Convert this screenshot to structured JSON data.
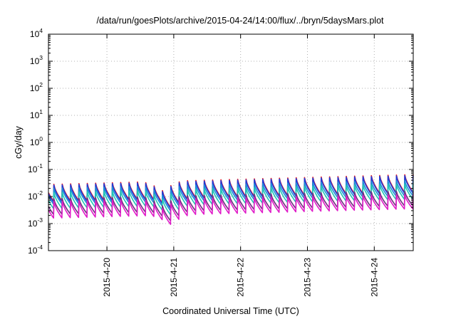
{
  "chart_data": {
    "type": "line",
    "title": "/data/run/goesPlots/archive/2015-04-24/14:00/flux/../bryn/5daysMars.plot",
    "xlabel": "Coordinated Universal Time (UTC)",
    "ylabel": "cGy/day",
    "yscale": "log",
    "ylim": [
      0.0001,
      10000
    ],
    "y_ticks": [
      {
        "base": "10",
        "exp": "-4",
        "value": 0.0001
      },
      {
        "base": "10",
        "exp": "-3",
        "value": 0.001
      },
      {
        "base": "10",
        "exp": "-2",
        "value": 0.01
      },
      {
        "base": "10",
        "exp": "-1",
        "value": 0.1
      },
      {
        "base": "10",
        "exp": "0",
        "value": 1
      },
      {
        "base": "10",
        "exp": "1",
        "value": 10
      },
      {
        "base": "10",
        "exp": "2",
        "value": 100
      },
      {
        "base": "10",
        "exp": "3",
        "value": 1000
      },
      {
        "base": "10",
        "exp": "4",
        "value": 10000
      }
    ],
    "xlim": [
      "2015-04-19 03:00",
      "2015-04-24 14:00"
    ],
    "x_ticks": [
      "2015-4-20",
      "2015-4-21",
      "2015-4-22",
      "2015-4-23",
      "2015-4-24"
    ],
    "grid": true,
    "legend": "none",
    "sawtooth_period_hours": 3,
    "series": [
      {
        "color": "#e8141e",
        "peak_start": 0.028,
        "peak_end": 0.065,
        "trough_start": 0.0068,
        "trough_end": 0.015
      },
      {
        "color": "#1e3cd8",
        "peak_start": 0.026,
        "peak_end": 0.06,
        "trough_start": 0.0062,
        "trough_end": 0.0138
      },
      {
        "color": "#1e8cd8",
        "peak_start": 0.02,
        "peak_end": 0.04,
        "trough_start": 0.0052,
        "trough_end": 0.011
      },
      {
        "color": "#20c8b4",
        "peak_start": 0.014,
        "peak_end": 0.03,
        "trough_start": 0.0036,
        "trough_end": 0.0082
      },
      {
        "color": "#6e2c7e",
        "peak_start": 0.0082,
        "peak_end": 0.016,
        "trough_start": 0.0022,
        "trough_end": 0.0047
      },
      {
        "color": "#e01cc8",
        "peak_start": 0.0066,
        "peak_end": 0.012,
        "trough_start": 0.0016,
        "trough_end": 0.0036
      }
    ],
    "dip_event": {
      "time": "2015-04-20 20:00",
      "low_factor": 0.45
    }
  }
}
